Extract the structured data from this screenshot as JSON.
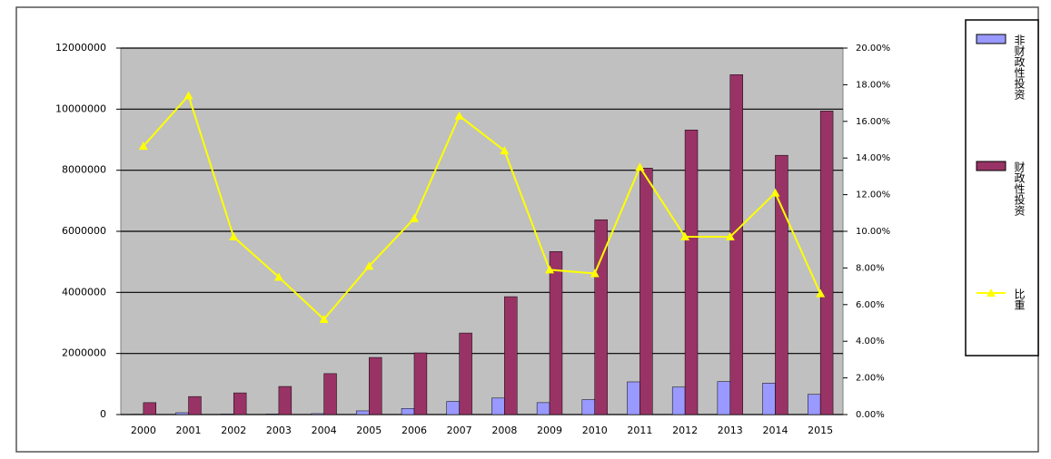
{
  "chart_data": {
    "type": "bar",
    "categories": [
      "2000",
      "2001",
      "2002",
      "2003",
      "2004",
      "2005",
      "2006",
      "2007",
      "2008",
      "2009",
      "2010",
      "2011",
      "2012",
      "2013",
      "2014",
      "2015"
    ],
    "series": [
      {
        "name": "非财政性投资",
        "color": "#9999ff",
        "values": [
          10000,
          60000,
          20000,
          20000,
          30000,
          120000,
          200000,
          430000,
          540000,
          390000,
          490000,
          1070000,
          900000,
          1080000,
          1030000,
          660000
        ]
      },
      {
        "name": "财政性投资",
        "color": "#993366",
        "values": [
          390000,
          590000,
          710000,
          920000,
          1340000,
          1870000,
          2020000,
          2670000,
          3860000,
          5340000,
          6380000,
          8070000,
          9320000,
          11130000,
          8490000,
          9940000
        ]
      },
      {
        "name": "比重",
        "color": "#ffff00",
        "type": "line",
        "axis": "y2",
        "values": [
          14.65,
          17.4,
          9.7,
          7.5,
          5.2,
          8.1,
          10.7,
          16.3,
          14.4,
          7.9,
          7.7,
          13.5,
          9.7,
          9.7,
          12.1,
          6.6
        ]
      }
    ],
    "ylim": [
      0,
      12000000
    ],
    "yticks": [
      0,
      2000000,
      4000000,
      6000000,
      8000000,
      10000000,
      12000000
    ],
    "y2lim": [
      0,
      20
    ],
    "y2ticks": [
      {
        "value": 0,
        "label": "0.00%"
      },
      {
        "value": 2,
        "label": "2.00%"
      },
      {
        "value": 4,
        "label": "4.00%"
      },
      {
        "value": 6,
        "label": "6.00%"
      },
      {
        "value": 8,
        "label": "8.00%"
      },
      {
        "value": 10,
        "label": "10.00%"
      },
      {
        "value": 12,
        "label": "12.00%"
      },
      {
        "value": 14,
        "label": "14.00%"
      },
      {
        "value": 16,
        "label": "16.00%"
      },
      {
        "value": 18,
        "label": "18.00%"
      },
      {
        "value": 20,
        "label": "20.00%"
      }
    ],
    "grid": true,
    "plot_background": "#c0c0c0",
    "legend": "right"
  }
}
